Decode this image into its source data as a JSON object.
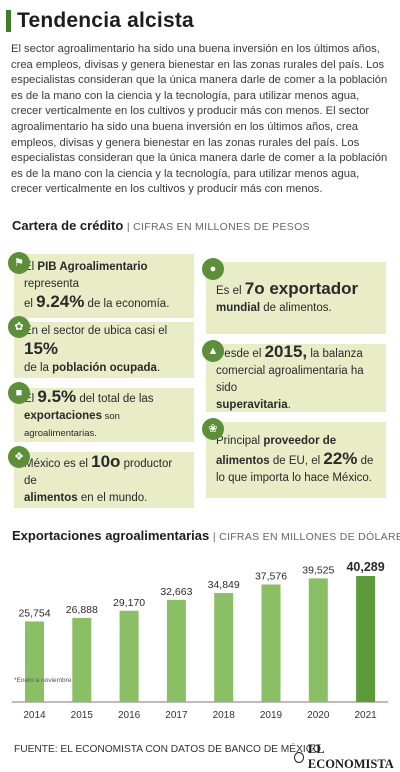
{
  "header": {
    "title": "Tendencia alcista",
    "intro": "El sector agroalimentario ha sido una buena inversión en los últimos años, crea empleos, divisas y genera bienestar en las zonas rurales del país. Los especialistas consideran que la única manera darle de comer a la población es de la mano con la ciencia y la tecnología, para utilizar menos agua, crecer verticalmente en los cultivos y producir más con menos. El sector agroalimentario ha sido una buena inversión en los últimos años, crea empleos, divisas y genera bienestar en las zonas rurales del país. Los especialistas consideran que la única manera darle de comer a la población es de la mano con la ciencia y la tecnología, para utilizar menos agua, crecer verticalmente en los cultivos y producir más con menos."
  },
  "credit_section": {
    "title": "Cartera de crédito",
    "subtitle": "| CIFRAS EN MILLONES DE PESOS"
  },
  "facts": {
    "pib": {
      "a": "El ",
      "b": "PIB Agroalimentario",
      "c": " representa",
      "d": "el ",
      "e": "9.24%",
      "f": " de la economía."
    },
    "exportador": {
      "a": "Es el ",
      "b": "7o exportador",
      "c": "mundial",
      "d": " de alimentos."
    },
    "sector": {
      "a": "En el sector de ubica casi el ",
      "b": "15%",
      "c": "de la ",
      "d": "población ocupada",
      "e": "."
    },
    "balanza": {
      "a": "Desde el ",
      "b": "2015,",
      "c": " la balanza",
      "d": "comercial agroalimentaria ha sido",
      "e": "superavitaria",
      "f": "."
    },
    "exportaciones": {
      "a": "El ",
      "b": "9.5%",
      "c": " del total de las",
      "d": "exportaciones",
      "e": " son agroalimentarias."
    },
    "proveedor": {
      "a": "Principal ",
      "b": "proveedor de",
      "c": "alimentos",
      "d": " de EU, el ",
      "e": "22%",
      "f": " de",
      "g": "lo que importa lo hace México."
    },
    "productor": {
      "a": "México es el ",
      "b": "10o",
      "c": " productor de",
      "d": "alimentos",
      "e": " en el mundo."
    }
  },
  "icons": [
    "farm-tractor-icon",
    "factory-icon",
    "plant-icon",
    "seedling-icon",
    "cow-icon",
    "grain-icon",
    "worker-icon"
  ],
  "colors": {
    "accent": "#5d8f3a",
    "bar": "#8bbf66",
    "bar_highlight": "#5d9a3c",
    "card": "#e8edc8"
  },
  "export_section": {
    "title": "Exportaciones agroalimentarias",
    "subtitle": "| CIFRAS EN MILLONES DE DÓLARES"
  },
  "chart_data": {
    "type": "bar",
    "title": "Exportaciones agroalimentarias",
    "categories": [
      "2014",
      "2015",
      "2016",
      "2017",
      "2018",
      "2019",
      "2020",
      "2021"
    ],
    "values": [
      25754,
      26888,
      29170,
      32663,
      34849,
      37576,
      39525,
      40289
    ],
    "value_labels": [
      "25,754",
      "26,888",
      "29,170",
      "32,663",
      "34,849",
      "37,576",
      "39,525",
      "40,289"
    ],
    "highlight_index": 7,
    "xlabel": "",
    "ylabel": "",
    "ylim": [
      0,
      40289
    ],
    "grid": false,
    "note": "*Enero a noviembre"
  },
  "footer": {
    "source": "FUENTE: EL ECONOMISTA CON DATOS DE BANCO DE MÉXICO",
    "brand": "EL ECONOMISTA"
  }
}
